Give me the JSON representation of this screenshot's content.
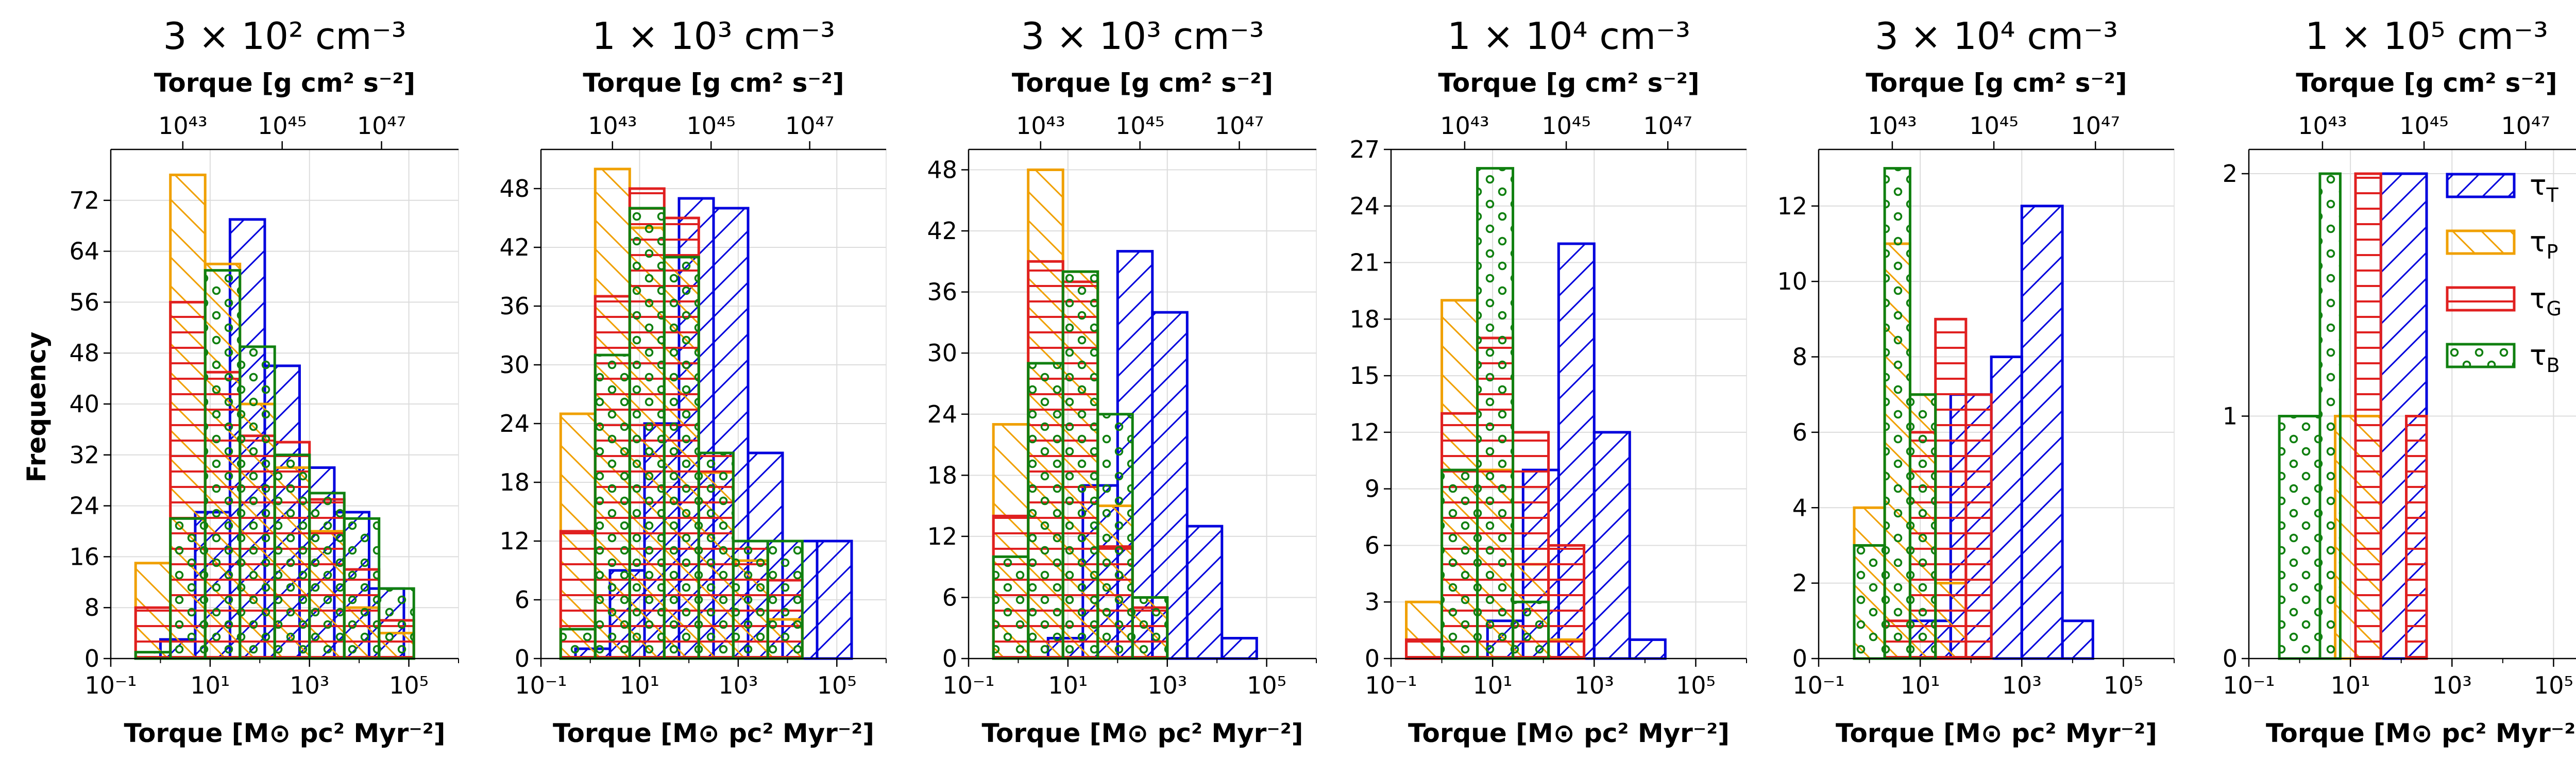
{
  "figure": {
    "ylabel": "Frequency",
    "xlabel_bottom": "Torque [M⊙ pc² Myr⁻²]",
    "xlabel_top": "Torque [g cm² s⁻²]",
    "x_ticks_bottom": [
      "10⁻¹",
      "10¹",
      "10³",
      "10⁵"
    ],
    "x_ticks_top": [
      "10⁴³",
      "10⁴⁵",
      "10⁴⁷"
    ],
    "colors": {
      "tau_T": "#0000dd",
      "tau_P": "#f0a000",
      "tau_G": "#e02020",
      "tau_B": "#108010"
    }
  },
  "legend": {
    "placement": "upper-right of last panel",
    "entries": [
      {
        "key": "tau_T",
        "symbol": "τ",
        "sub": "T"
      },
      {
        "key": "tau_P",
        "symbol": "τ",
        "sub": "P"
      },
      {
        "key": "tau_G",
        "symbol": "τ",
        "sub": "G"
      },
      {
        "key": "tau_B",
        "symbol": "τ",
        "sub": "B"
      }
    ]
  },
  "chart_data": [
    {
      "type": "histogram",
      "title": "3 × 10² cm⁻³",
      "x_scale": "log",
      "xlim_log10": [
        -1,
        6
      ],
      "ylim": [
        0,
        80
      ],
      "yticks": [
        0,
        8,
        16,
        24,
        32,
        40,
        48,
        56,
        64,
        72
      ],
      "series": [
        {
          "key": "tau_T",
          "bins_log10": [
            0,
            0.7,
            1.4,
            2.1,
            2.8,
            3.5,
            4.2,
            4.9
          ],
          "counts": [
            3,
            23,
            69,
            46,
            30,
            23,
            11
          ]
        },
        {
          "key": "tau_P",
          "bins_log10": [
            -0.5,
            0.2,
            0.9,
            1.6,
            2.3,
            3.0,
            3.7,
            4.4,
            5.1
          ],
          "counts": [
            15,
            76,
            62,
            40,
            30,
            20,
            8,
            4
          ]
        },
        {
          "key": "tau_G",
          "bins_log10": [
            -0.5,
            0.2,
            0.9,
            1.6,
            2.3,
            3.0,
            3.7,
            4.4,
            5.1
          ],
          "counts": [
            8,
            56,
            45,
            35,
            34,
            25,
            14,
            6
          ]
        },
        {
          "key": "tau_B",
          "bins_log10": [
            -0.5,
            0.2,
            0.9,
            1.6,
            2.3,
            3.0,
            3.7,
            4.4,
            5.1
          ],
          "counts": [
            1,
            22,
            61,
            49,
            32,
            26,
            22,
            11
          ]
        }
      ]
    },
    {
      "type": "histogram",
      "title": "1 × 10³ cm⁻³",
      "x_scale": "log",
      "xlim_log10": [
        -1,
        6
      ],
      "ylim": [
        0,
        52
      ],
      "yticks": [
        0,
        6,
        12,
        18,
        24,
        30,
        36,
        42,
        48
      ],
      "series": [
        {
          "key": "tau_T",
          "bins_log10": [
            -0.3,
            0.4,
            1.1,
            1.8,
            2.5,
            3.2,
            3.9,
            4.6,
            5.3
          ],
          "counts": [
            1,
            9,
            24,
            47,
            46,
            21,
            12,
            12
          ]
        },
        {
          "key": "tau_P",
          "bins_log10": [
            -0.6,
            0.1,
            0.8,
            1.5,
            2.2,
            2.9,
            3.6,
            4.3
          ],
          "counts": [
            25,
            50,
            44,
            41,
            19,
            10,
            4
          ]
        },
        {
          "key": "tau_G",
          "bins_log10": [
            -0.6,
            0.1,
            0.8,
            1.5,
            2.2,
            2.9,
            3.6,
            4.3
          ],
          "counts": [
            13,
            37,
            48,
            45,
            21,
            12,
            8
          ]
        },
        {
          "key": "tau_B",
          "bins_log10": [
            -0.6,
            0.1,
            0.8,
            1.5,
            2.2,
            2.9,
            3.6,
            4.3
          ],
          "counts": [
            3,
            31,
            46,
            41,
            21,
            12,
            12
          ]
        }
      ]
    },
    {
      "type": "histogram",
      "title": "3 × 10³ cm⁻³",
      "x_scale": "log",
      "xlim_log10": [
        -1,
        6
      ],
      "ylim": [
        0,
        50
      ],
      "yticks": [
        0,
        6,
        12,
        18,
        24,
        30,
        36,
        42,
        48
      ],
      "series": [
        {
          "key": "tau_T",
          "bins_log10": [
            0.6,
            1.3,
            2.0,
            2.7,
            3.4,
            4.1,
            4.8
          ],
          "counts": [
            2,
            17,
            40,
            34,
            13,
            2
          ]
        },
        {
          "key": "tau_P",
          "bins_log10": [
            -0.5,
            0.2,
            0.9,
            1.6,
            2.3,
            3.0
          ],
          "counts": [
            23,
            48,
            38,
            15,
            6
          ]
        },
        {
          "key": "tau_G",
          "bins_log10": [
            -0.5,
            0.2,
            0.9,
            1.6,
            2.3,
            3.0
          ],
          "counts": [
            14,
            39,
            37,
            11,
            5
          ]
        },
        {
          "key": "tau_B",
          "bins_log10": [
            -0.5,
            0.2,
            0.9,
            1.6,
            2.3,
            3.0
          ],
          "counts": [
            10,
            29,
            38,
            24,
            6
          ]
        }
      ]
    },
    {
      "type": "histogram",
      "title": "1 × 10⁴ cm⁻³",
      "x_scale": "log",
      "xlim_log10": [
        -1,
        6
      ],
      "ylim": [
        0,
        27
      ],
      "yticks": [
        0,
        3,
        6,
        9,
        12,
        15,
        18,
        21,
        24,
        27
      ],
      "series": [
        {
          "key": "tau_T",
          "bins_log10": [
            0.9,
            1.6,
            2.3,
            3.0,
            3.7,
            4.4
          ],
          "counts": [
            2,
            10,
            22,
            12,
            1
          ]
        },
        {
          "key": "tau_P",
          "bins_log10": [
            -0.7,
            0.0,
            0.7,
            1.4,
            2.1,
            2.8
          ],
          "counts": [
            3,
            19,
            10,
            5,
            1
          ]
        },
        {
          "key": "tau_G",
          "bins_log10": [
            -0.7,
            0.0,
            0.7,
            1.4,
            2.1,
            2.8
          ],
          "counts": [
            1,
            13,
            17,
            12,
            6
          ]
        },
        {
          "key": "tau_B",
          "bins_log10": [
            0.0,
            0.7,
            1.4,
            2.1
          ],
          "counts": [
            10,
            26,
            3
          ]
        }
      ]
    },
    {
      "type": "histogram",
      "title": "3 × 10⁴ cm⁻³",
      "x_scale": "log",
      "xlim_log10": [
        -1,
        6
      ],
      "ylim": [
        0,
        13.5
      ],
      "yticks": [
        0,
        2,
        4,
        6,
        8,
        10,
        12
      ],
      "series": [
        {
          "key": "tau_T",
          "bins_log10": [
            0.8,
            1.6,
            2.4,
            3.0,
            3.8,
            4.4
          ],
          "counts": [
            1,
            7,
            8,
            12,
            1
          ]
        },
        {
          "key": "tau_P",
          "bins_log10": [
            -0.3,
            0.3,
            0.8,
            1.3,
            1.9
          ],
          "counts": [
            4,
            11,
            7,
            2
          ]
        },
        {
          "key": "tau_G",
          "bins_log10": [
            0.3,
            0.8,
            1.3,
            1.9,
            2.4
          ],
          "counts": [
            1,
            6,
            9,
            7
          ]
        },
        {
          "key": "tau_B",
          "bins_log10": [
            -0.3,
            0.3,
            0.8,
            1.3
          ],
          "counts": [
            3,
            13,
            7
          ]
        }
      ]
    },
    {
      "type": "histogram",
      "title": "1 × 10⁵ cm⁻³",
      "x_scale": "log",
      "xlim_log10": [
        -1,
        6
      ],
      "ylim": [
        0,
        2.1
      ],
      "yticks": [
        0,
        1,
        2
      ],
      "series": [
        {
          "key": "tau_T",
          "bins_log10": [
            1.6,
            2.5
          ],
          "counts": [
            2
          ]
        },
        {
          "key": "tau_P",
          "bins_log10": [
            0.7,
            1.6
          ],
          "counts": [
            1
          ]
        },
        {
          "key": "tau_G",
          "bins_log10": [
            1.1,
            1.6,
            2.1,
            2.5
          ],
          "counts": [
            2,
            0,
            1
          ]
        },
        {
          "key": "tau_B",
          "bins_log10": [
            -0.4,
            0.4,
            0.8
          ],
          "counts": [
            1,
            2
          ]
        }
      ]
    }
  ]
}
